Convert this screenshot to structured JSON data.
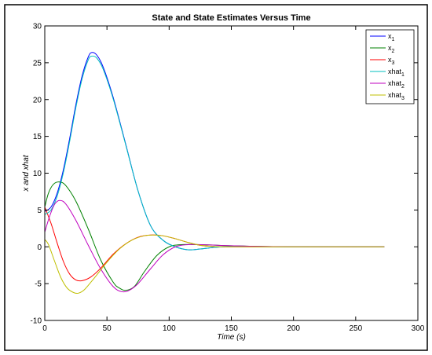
{
  "chart_data": {
    "type": "line",
    "title": "State and State Estimates Versus Time",
    "xlabel": "Time (s)",
    "ylabel": "x and xhat",
    "xlim": [
      0,
      300
    ],
    "ylim": [
      -10,
      30
    ],
    "xticks": [
      0,
      50,
      100,
      150,
      200,
      250,
      300
    ],
    "yticks": [
      -10,
      -5,
      0,
      5,
      10,
      15,
      20,
      25,
      30
    ],
    "grid": false,
    "legend_position": "top-right",
    "series": [
      {
        "base": "x",
        "sub": "1",
        "color": "#0000ff",
        "points": [
          [
            0,
            4.8
          ],
          [
            5,
            5.4
          ],
          [
            10,
            7.3
          ],
          [
            15,
            10.5
          ],
          [
            20,
            14.7
          ],
          [
            25,
            19.3
          ],
          [
            30,
            23.2
          ],
          [
            35,
            25.8
          ],
          [
            38,
            26.4
          ],
          [
            42,
            26.0
          ],
          [
            47,
            24.4
          ],
          [
            55,
            20.3
          ],
          [
            65,
            14.0
          ],
          [
            75,
            7.6
          ],
          [
            85,
            2.9
          ],
          [
            95,
            0.9
          ],
          [
            105,
            0.0
          ],
          [
            115,
            -0.4
          ],
          [
            125,
            -0.3
          ],
          [
            135,
            -0.1
          ],
          [
            150,
            0.05
          ],
          [
            170,
            0.02
          ],
          [
            200,
            0.0
          ],
          [
            240,
            0.0
          ],
          [
            273,
            0.0
          ]
        ]
      },
      {
        "base": "x",
        "sub": "2",
        "color": "#008000",
        "points": [
          [
            0,
            5.4
          ],
          [
            3,
            7.3
          ],
          [
            7,
            8.5
          ],
          [
            12,
            8.8
          ],
          [
            17,
            8.3
          ],
          [
            25,
            6.2
          ],
          [
            35,
            2.4
          ],
          [
            45,
            -1.8
          ],
          [
            55,
            -4.8
          ],
          [
            60,
            -5.6
          ],
          [
            65,
            -5.9
          ],
          [
            72,
            -5.4
          ],
          [
            80,
            -3.4
          ],
          [
            90,
            -1.2
          ],
          [
            100,
            0.0
          ],
          [
            110,
            0.3
          ],
          [
            125,
            0.3
          ],
          [
            140,
            0.2
          ],
          [
            160,
            0.1
          ],
          [
            200,
            0.0
          ],
          [
            273,
            0.0
          ]
        ]
      },
      {
        "base": "x",
        "sub": "3",
        "color": "#ff0000",
        "points": [
          [
            0,
            5.4
          ],
          [
            5,
            3.2
          ],
          [
            10,
            0.5
          ],
          [
            15,
            -2.0
          ],
          [
            20,
            -3.7
          ],
          [
            25,
            -4.5
          ],
          [
            30,
            -4.6
          ],
          [
            37,
            -4.1
          ],
          [
            45,
            -2.9
          ],
          [
            55,
            -1.0
          ],
          [
            65,
            0.4
          ],
          [
            75,
            1.3
          ],
          [
            85,
            1.6
          ],
          [
            95,
            1.5
          ],
          [
            105,
            1.1
          ],
          [
            115,
            0.6
          ],
          [
            125,
            0.2
          ],
          [
            135,
            0.05
          ],
          [
            150,
            0.0
          ],
          [
            200,
            0.0
          ],
          [
            273,
            0.0
          ]
        ]
      },
      {
        "base": "xhat",
        "sub": "1",
        "color": "#00bfbf",
        "points": [
          [
            0,
            4.4
          ],
          [
            5,
            5.0
          ],
          [
            10,
            6.9
          ],
          [
            15,
            10.1
          ],
          [
            20,
            14.3
          ],
          [
            25,
            18.9
          ],
          [
            30,
            22.8
          ],
          [
            35,
            25.4
          ],
          [
            38,
            25.9
          ],
          [
            42,
            25.6
          ],
          [
            47,
            24.1
          ],
          [
            55,
            20.1
          ],
          [
            65,
            13.9
          ],
          [
            75,
            7.6
          ],
          [
            85,
            2.9
          ],
          [
            95,
            0.9
          ],
          [
            105,
            0.0
          ],
          [
            115,
            -0.4
          ],
          [
            125,
            -0.3
          ],
          [
            135,
            -0.1
          ],
          [
            150,
            0.05
          ],
          [
            170,
            0.02
          ],
          [
            200,
            0.0
          ],
          [
            240,
            0.0
          ],
          [
            273,
            0.0
          ]
        ]
      },
      {
        "base": "xhat",
        "sub": "2",
        "color": "#bf00bf",
        "points": [
          [
            0,
            2.0
          ],
          [
            4,
            4.2
          ],
          [
            8,
            5.8
          ],
          [
            12,
            6.3
          ],
          [
            17,
            5.8
          ],
          [
            25,
            3.6
          ],
          [
            35,
            0.2
          ],
          [
            45,
            -3.0
          ],
          [
            55,
            -5.4
          ],
          [
            62,
            -6.1
          ],
          [
            68,
            -5.9
          ],
          [
            75,
            -5.0
          ],
          [
            85,
            -3.0
          ],
          [
            95,
            -1.1
          ],
          [
            105,
            0.0
          ],
          [
            115,
            0.3
          ],
          [
            125,
            0.3
          ],
          [
            140,
            0.2
          ],
          [
            160,
            0.1
          ],
          [
            200,
            0.0
          ],
          [
            273,
            0.0
          ]
        ]
      },
      {
        "base": "xhat",
        "sub": "3",
        "color": "#bfbf00",
        "points": [
          [
            0,
            1.0
          ],
          [
            3,
            0.3
          ],
          [
            8,
            -2.0
          ],
          [
            13,
            -4.2
          ],
          [
            18,
            -5.6
          ],
          [
            23,
            -6.2
          ],
          [
            27,
            -6.3
          ],
          [
            32,
            -5.8
          ],
          [
            40,
            -4.2
          ],
          [
            50,
            -2.1
          ],
          [
            60,
            -0.3
          ],
          [
            70,
            0.9
          ],
          [
            80,
            1.5
          ],
          [
            88,
            1.6
          ],
          [
            95,
            1.5
          ],
          [
            105,
            1.1
          ],
          [
            115,
            0.6
          ],
          [
            125,
            0.2
          ],
          [
            135,
            0.05
          ],
          [
            150,
            0.0
          ],
          [
            200,
            0.0
          ],
          [
            273,
            0.0
          ]
        ]
      }
    ]
  }
}
